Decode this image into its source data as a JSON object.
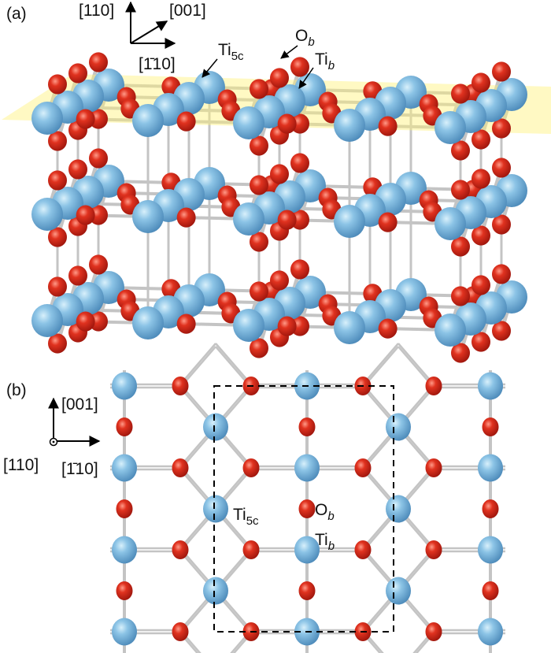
{
  "colors": {
    "ti": "#6aaed6",
    "o": "#d42a1a",
    "bond": "#c4c4c4",
    "surface_plane": "#fff27a"
  },
  "panel_a": {
    "label": "(a)",
    "axes": {
      "up": "[110]",
      "diag": "[001]",
      "right": "[1̄10]"
    },
    "annotations": {
      "ti5c": {
        "main": "Ti",
        "sub": "5c"
      },
      "ob": {
        "main": "O",
        "sub": "b"
      },
      "tib": {
        "main": "Ti",
        "sub": "b"
      }
    }
  },
  "panel_b": {
    "label": "(b)",
    "axes": {
      "up": "[001]",
      "out": "[110]",
      "right": "[1̄10]"
    },
    "annotations": {
      "ti5c": {
        "main": "Ti",
        "sub": "5c"
      },
      "ob": {
        "main": "O",
        "sub": "b"
      },
      "tib": {
        "main": "Ti",
        "sub": "b"
      }
    }
  }
}
